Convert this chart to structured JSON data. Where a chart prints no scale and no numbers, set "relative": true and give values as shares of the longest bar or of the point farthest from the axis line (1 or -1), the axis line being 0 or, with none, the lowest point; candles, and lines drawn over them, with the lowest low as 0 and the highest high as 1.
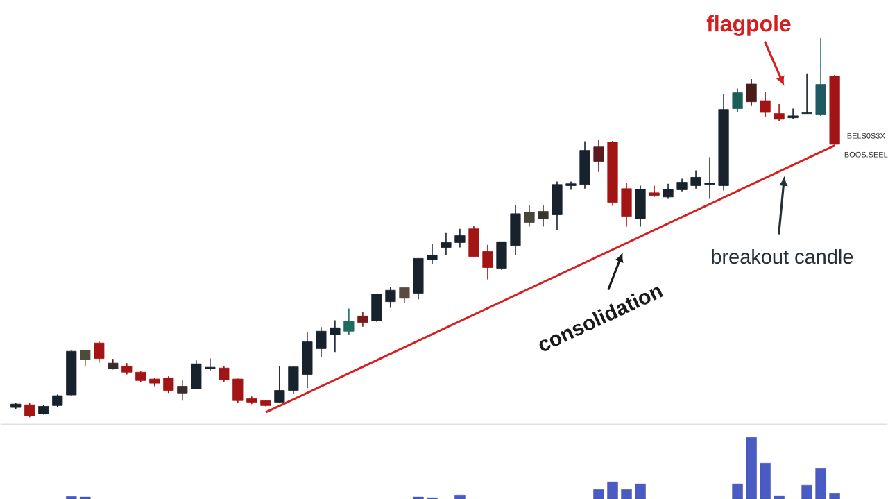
{
  "chart_data": [
    {
      "type": "candlestick",
      "relative": true,
      "categories": [
        null,
        null,
        null,
        null,
        null,
        null,
        null,
        null,
        null,
        null,
        null,
        null,
        null,
        null,
        null,
        null,
        null,
        null,
        null,
        null,
        null,
        null,
        null,
        null,
        null,
        null,
        null,
        null,
        null,
        null,
        null,
        null,
        null,
        null,
        null,
        null,
        null,
        null,
        null,
        null,
        null,
        null,
        null,
        null,
        null,
        null,
        null,
        null,
        null,
        null,
        null,
        null,
        null,
        null,
        null,
        null,
        null,
        null,
        null,
        null
      ],
      "ohlc": [
        [
          0.026,
          0.038,
          0.022,
          0.035
        ],
        [
          0.033,
          0.037,
          0,
          0.004
        ],
        [
          0.009,
          0.033,
          0.007,
          0.029
        ],
        [
          0.031,
          0.06,
          0.026,
          0.057
        ],
        [
          0.059,
          0.177,
          0.057,
          0.174
        ],
        [
          0.152,
          0.177,
          0.135,
          0.177
        ],
        [
          0.196,
          0.201,
          0.144,
          0.155
        ],
        [
          0.143,
          0.154,
          0.126,
          0.128
        ],
        [
          0.135,
          0.143,
          0.113,
          0.119
        ],
        [
          0.119,
          0.121,
          0.093,
          0.097
        ],
        [
          0.101,
          0.104,
          0.082,
          0.09
        ],
        [
          0.104,
          0.108,
          0.064,
          0.071
        ],
        [
          0.064,
          0.097,
          0.044,
          0.082
        ],
        [
          0.075,
          0.15,
          0.075,
          0.141
        ],
        [
          0.128,
          0.155,
          0.122,
          0.132
        ],
        [
          0.13,
          0.135,
          0.093,
          0.099
        ],
        [
          0.101,
          0.102,
          0.038,
          0.044
        ],
        [
          0.049,
          0.055,
          0.035,
          0.04
        ],
        [
          0.044,
          0.046,
          0.029,
          0.031
        ],
        [
          0.04,
          0.135,
          0.037,
          0.071
        ],
        [
          0.071,
          0.133,
          0.062,
          0.133
        ],
        [
          0.113,
          0.225,
          0.077,
          0.199
        ],
        [
          0.181,
          0.238,
          0.159,
          0.227
        ],
        [
          0.218,
          0.256,
          0.172,
          0.236
        ],
        [
          0.227,
          0.287,
          0.218,
          0.254
        ],
        [
          0.267,
          0.278,
          0.239,
          0.25
        ],
        [
          0.254,
          0.325,
          0.252,
          0.325
        ],
        [
          0.305,
          0.344,
          0.289,
          0.335
        ],
        [
          0.314,
          0.342,
          0.302,
          0.342
        ],
        [
          0.327,
          0.419,
          0.311,
          0.419
        ],
        [
          0.415,
          0.457,
          0.404,
          0.428
        ],
        [
          0.448,
          0.486,
          0.428,
          0.461
        ],
        [
          0.461,
          0.497,
          0.448,
          0.479
        ],
        [
          0.497,
          0.505,
          0.424,
          0.424
        ],
        [
          0.437,
          0.455,
          0.364,
          0.395
        ],
        [
          0.393,
          0.463,
          0.389,
          0.463
        ],
        [
          0.453,
          0.559,
          0.428,
          0.537
        ],
        [
          0.514,
          0.559,
          0.503,
          0.541
        ],
        [
          0.523,
          0.559,
          0.503,
          0.543
        ],
        [
          0.534,
          0.622,
          0.494,
          0.614
        ],
        [
          0.611,
          0.622,
          0.6,
          0.616
        ],
        [
          0.614,
          0.728,
          0.603,
          0.704
        ],
        [
          0.713,
          0.731,
          0.647,
          0.675
        ],
        [
          0.726,
          0.729,
          0.558,
          0.567
        ],
        [
          0.603,
          0.618,
          0.503,
          0.53
        ],
        [
          0.523,
          0.611,
          0.503,
          0.601
        ],
        [
          0.592,
          0.611,
          0.581,
          0.585
        ],
        [
          0.581,
          0.616,
          0.576,
          0.601
        ],
        [
          0.6,
          0.629,
          0.596,
          0.62
        ],
        [
          0.611,
          0.651,
          0.603,
          0.633
        ],
        [
          0.614,
          0.686,
          0.576,
          0.618
        ],
        [
          0.611,
          0.852,
          0.598,
          0.812
        ],
        [
          0.814,
          0.867,
          0.806,
          0.856
        ],
        [
          0.879,
          0.892,
          0.821,
          0.832
        ],
        [
          0.835,
          0.857,
          0.793,
          0.804
        ],
        [
          0.801,
          0.826,
          0.781,
          0.786
        ],
        [
          0.79,
          0.814,
          0.786,
          0.795
        ],
        [
          0.801,
          0.907,
          0.801,
          0.803
        ],
        [
          0.799,
          1,
          0.795,
          0.878
        ],
        [
          0.899,
          0.903,
          0.717,
          0.72
        ]
      ],
      "colors": [
        "#17222c",
        "#a31515",
        "#17222c",
        "#17222c",
        "#17222c",
        "#4d4b3a",
        "#a31515",
        "#3b2a2c",
        "#a31515",
        "#a31515",
        "#a31515",
        "#a31515",
        "#3b2a2c",
        "#17222c",
        "#17222c",
        "#a31515",
        "#a31515",
        "#a31515",
        "#a31515",
        "#17222c",
        "#17222c",
        "#17222c",
        "#17222c",
        "#17222c",
        "#1f6b5f",
        "#7a1a1a",
        "#17222c",
        "#17222c",
        "#5a4a42",
        "#17222c",
        "#17222c",
        "#17222c",
        "#17222c",
        "#a31515",
        "#a31515",
        "#17222c",
        "#17222c",
        "#45453a",
        "#3b3530",
        "#17222c",
        "#17222c",
        "#17222c",
        "#5c1a1e",
        "#a31515",
        "#a31515",
        "#17222c",
        "#a31515",
        "#17222c",
        "#17222c",
        "#17222c",
        "#17222c",
        "#17222c",
        "#1d5e57",
        "#4a1c1c",
        "#a31515",
        "#a31515",
        "#17222c",
        "#17222c",
        "#1f5a62",
        "#a31515"
      ],
      "series": [
        {
          "type": "line",
          "color": "#d42020",
          "values": [
            null,
            null,
            null,
            null,
            null,
            null,
            null,
            null,
            null,
            null,
            null,
            null,
            null,
            null,
            null,
            null,
            null,
            null,
            0.013,
            null,
            null,
            null,
            null,
            null,
            null,
            null,
            null,
            null,
            null,
            null,
            null,
            null,
            null,
            null,
            null,
            null,
            null,
            null,
            null,
            null,
            null,
            null,
            null,
            null,
            null,
            null,
            null,
            null,
            null,
            null,
            null,
            null,
            null,
            null,
            null,
            null,
            null,
            null,
            null,
            0.717
          ]
        }
      ],
      "annotations": [
        "flagpole",
        "consolidation",
        "breakout candle",
        "BELS0S3X",
        "BOOS.SEEL"
      ]
    },
    {
      "type": "bar",
      "relative": true,
      "color": "#4a5bc4",
      "categories": [
        null,
        null,
        null,
        null,
        null,
        null,
        null,
        null,
        null,
        null,
        null,
        null,
        null,
        null,
        null,
        null,
        null,
        null,
        null,
        null,
        null,
        null,
        null,
        null,
        null,
        null,
        null,
        null,
        null,
        null,
        null,
        null,
        null,
        null,
        null,
        null,
        null,
        null,
        null,
        null,
        null,
        null,
        null,
        null,
        null,
        null,
        null,
        null,
        null,
        null,
        null,
        null,
        null,
        null,
        null,
        null,
        null,
        null,
        null,
        null
      ],
      "values": [
        null,
        null,
        null,
        null,
        0.045,
        0.034,
        null,
        null,
        null,
        null,
        null,
        null,
        null,
        null,
        null,
        null,
        null,
        null,
        null,
        null,
        null,
        null,
        null,
        null,
        null,
        null,
        null,
        null,
        null,
        0.034,
        0.022,
        null,
        0.067,
        null,
        null,
        null,
        null,
        null,
        null,
        null,
        null,
        null,
        0.157,
        0.281,
        0.157,
        0.247,
        null,
        null,
        null,
        null,
        null,
        null,
        0.247,
        1,
        0.584,
        0.056,
        null,
        0.225,
        0.494,
        0.09
      ]
    }
  ]
}
